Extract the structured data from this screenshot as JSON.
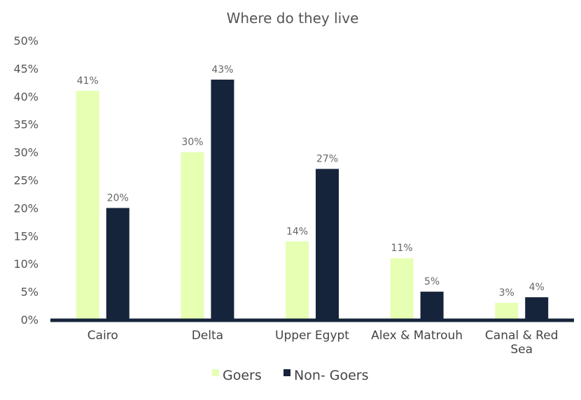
{
  "chart_data": {
    "type": "bar",
    "title": "Where do they live",
    "xlabel": "",
    "ylabel": "",
    "categories": [
      "Cairo",
      "Delta",
      "Upper Egypt",
      "Alex & Matrouh",
      "Canal & Red Sea"
    ],
    "category_lines": [
      [
        "Cairo"
      ],
      [
        "Delta"
      ],
      [
        "Upper Egypt"
      ],
      [
        "Alex & Matrouh"
      ],
      [
        "Canal & Red",
        "Sea"
      ]
    ],
    "series": [
      {
        "name": "Goers",
        "values": [
          41,
          30,
          14,
          11,
          3
        ],
        "labels": [
          "41%",
          "30%",
          "14%",
          "11%",
          "3%"
        ],
        "color": "#e6ffb3"
      },
      {
        "name": "Non- Goers",
        "values": [
          20,
          43,
          27,
          5,
          4
        ],
        "labels": [
          "20%",
          "43%",
          "27%",
          "5%",
          "4%"
        ],
        "color": "#16243b"
      }
    ],
    "ylim": [
      0,
      50
    ],
    "yticks": [
      0,
      5,
      10,
      15,
      20,
      25,
      30,
      35,
      40,
      45,
      50
    ],
    "ytick_labels": [
      "0%",
      "5%",
      "10%",
      "15%",
      "20%",
      "25%",
      "30%",
      "35%",
      "40%",
      "45%",
      "50%"
    ],
    "grid": false,
    "legend": "bottom",
    "axis_color": "#16243b"
  }
}
